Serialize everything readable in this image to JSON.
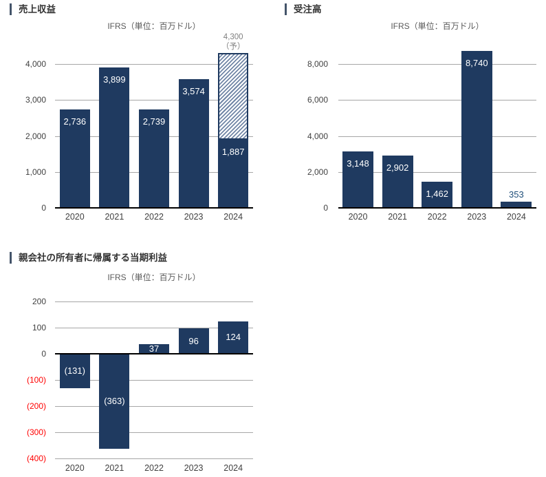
{
  "colors": {
    "bar": "#1f3a60",
    "grid": "#a6a6a6",
    "axis": "#000000",
    "tick_label": "#404040",
    "negative_tick_label": "#ff0000",
    "outside_bar_label": "#1f4e79",
    "forecast_label": "#808080",
    "title_accent": "#44546a",
    "hatch_stripe": "#7186a6"
  },
  "chart_data": [
    {
      "id": "revenue",
      "type": "bar",
      "title": "売上収益",
      "subtitle": "IFRS（単位：百万ドル）",
      "categories": [
        "2020",
        "2021",
        "2022",
        "2023",
        "2024"
      ],
      "values": [
        2736,
        3899,
        2739,
        3574,
        1887
      ],
      "value_labels": [
        "2,736",
        "3,899",
        "2,739",
        "3,574",
        "1,887"
      ],
      "yticks": [
        0,
        1000,
        2000,
        3000,
        4000
      ],
      "ytick_labels": [
        "0",
        "1,000",
        "2,000",
        "3,000",
        "4,000"
      ],
      "ylim": [
        0,
        4400
      ],
      "grid": true,
      "legend": false,
      "forecast": {
        "category_index": 4,
        "from": 1887,
        "to": 4300,
        "label_line1": "4,300",
        "label_line2": "（予）"
      }
    },
    {
      "id": "orders",
      "type": "bar",
      "title": "受注高",
      "subtitle": "IFRS（単位：百万ドル）",
      "categories": [
        "2020",
        "2021",
        "2022",
        "2023",
        "2024"
      ],
      "values": [
        3148,
        2902,
        1462,
        8740,
        353
      ],
      "value_labels": [
        "3,148",
        "2,902",
        "1,462",
        "8,740",
        "353"
      ],
      "yticks": [
        0,
        2000,
        4000,
        6000,
        8000
      ],
      "ytick_labels": [
        "0",
        "2,000",
        "4,000",
        "6,000",
        "8,000"
      ],
      "ylim": [
        0,
        8800
      ],
      "grid": true,
      "legend": false
    },
    {
      "id": "net-income",
      "type": "bar",
      "title": "親会社の所有者に帰属する当期利益",
      "subtitle": "IFRS（単位：百万ドル）",
      "categories": [
        "2020",
        "2021",
        "2022",
        "2023",
        "2024"
      ],
      "values": [
        -131,
        -363,
        37,
        96,
        124
      ],
      "value_labels": [
        "(131)",
        "(363)",
        "37",
        "96",
        "124"
      ],
      "yticks": [
        200,
        100,
        0,
        -100,
        -200,
        -300,
        -400
      ],
      "ytick_labels": [
        "200",
        "100",
        "0",
        "(100)",
        "(200)",
        "(300)",
        "(400)"
      ],
      "ylim": [
        -400,
        200
      ],
      "grid": true,
      "legend": false
    }
  ]
}
